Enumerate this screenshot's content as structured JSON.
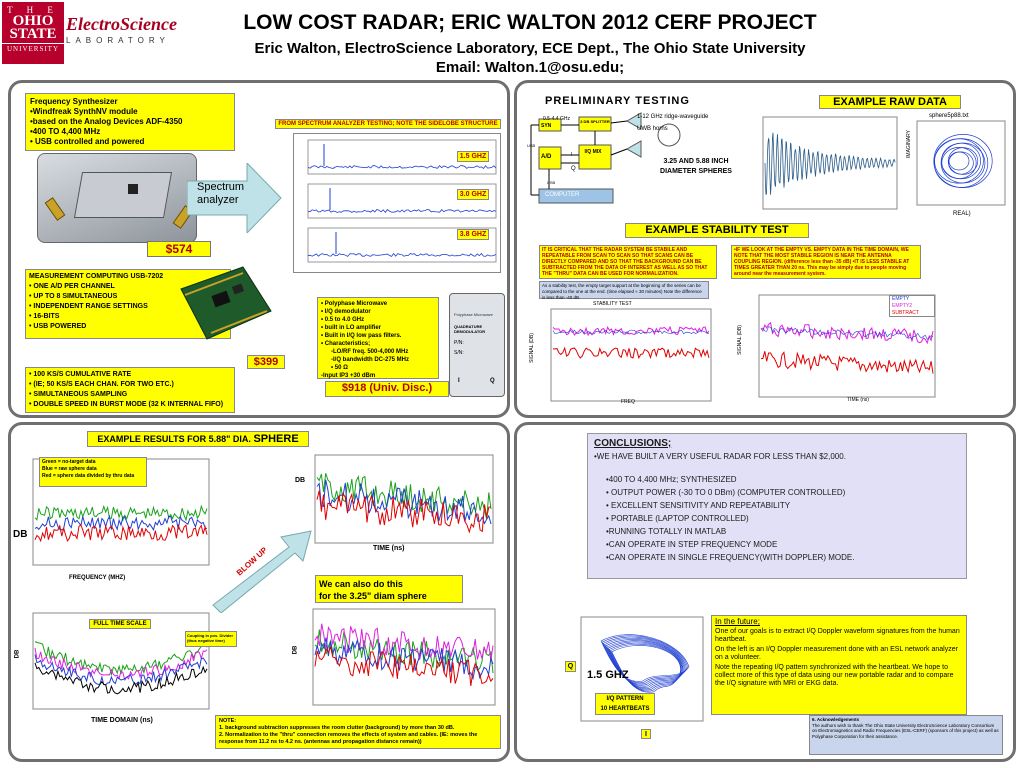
{
  "header": {
    "osu_logo": {
      "line1": "T H E",
      "line2": "OHIO",
      "line3": "STATE",
      "line4": "UNIVERSITY"
    },
    "es_logo": {
      "name": "ElectroScience",
      "lab": "LABORATORY"
    },
    "title": "LOW COST RADAR;   ERIC WALTON 2012 CERF PROJECT",
    "subtitle": "Eric Walton, ElectroScience Laboratory, ECE Dept., The Ohio State University",
    "email": "Email: Walton.1@osu.edu;"
  },
  "panel_tl": {
    "synth": {
      "title": "Frequency Synthesizer",
      "items": [
        "•Windfreak SynthNV module",
        "•based on the  Analog Devices ADF-4350",
        "•400 TO 4,400 MHz",
        "• USB controlled and powered"
      ]
    },
    "spectrum_label": "Spectrum analyzer",
    "price_synth": "$574",
    "sa_title": "FROM SPECTRUM ANALYZER TESTING;  NOTE THE SIDELOBE STRUCTURE",
    "ghz_labels": [
      "1.5 GHZ",
      "3.0 GHZ",
      "3.8 GHZ"
    ],
    "measurement": {
      "title": "MEASUREMENT COMPUTING USB-7202",
      "items": [
        "•  ONE A/D PER CHANNEL",
        "•  UP TO 8 SIMULTANEOUS",
        "•  INDEPENDENT RANGE SETTINGS",
        "•  16-BITS",
        "•  USB POWERED"
      ]
    },
    "price_daq": "$399",
    "rate": {
      "items": [
        "•  100 KS/S CUMULATIVE RATE",
        "•  (IE; 50 KS/S EACH CHAN. FOR TWO ETC.)",
        "•  SIMULTANEOUS SAMPLING",
        "•  DOUBLE SPEED IN BURST MODE (32 K INTERNAL FIFO)"
      ]
    },
    "polyphase": {
      "items": [
        "• Polyphase Microwave",
        "• I/Q demodulator",
        "• 0.5 to 4.0 GHz",
        "• built in LO amplifier",
        "• Built in  I/Q low pass filters.",
        "• Characteristics;",
        "-LO/RF freq.        500-4,000 MHz",
        "-I/Q bandwidth      DC-275 MHz",
        "• 50 Ω",
        "-Input IP3    +30 dBm"
      ]
    },
    "price_demod": "$918 (Univ. Disc.)",
    "demod": {
      "brand": "Polyphase Microwave",
      "name": "QUADRATURE DEMODULATOR",
      "pn": "P/N:",
      "sn": "S/N:",
      "i": "I",
      "q": "Q"
    }
  },
  "panel_tr": {
    "pre_title": "PRELIMINARY  TESTING",
    "block": {
      "freq1": "0.5-4.4 GHz",
      "freq2": "1-12 GHz ridge-waveguide",
      "freq3": "UWB horns",
      "syn": "SYN",
      "splitter": "3 DB SPLITTER",
      "ad": "A/D",
      "iq": "I/Q MIX",
      "usb1": "USB",
      "usb2": "USB",
      "i": "I",
      "q": "Q",
      "computer": "COMPUTER",
      "spheres": "3.25 AND 5.88 INCH DIAMETER SPHERES"
    },
    "raw_title": "EXAMPLE RAW DATA",
    "raw_plot_title": "sphere5p88.txt",
    "raw_ylabel": "IMAGINARY",
    "raw_xlabel": "REAL)",
    "stab_title": "EXAMPLE STABILITY TEST",
    "crit_left": "IT IS CRITICAL THAT THE RADAR SYSTEM BE STABILE AND REPEATABLE FROM SCAN TO SCAN SO THAT  SCANS CAN BE DIRECTLY COMPARED AND SO THAT THE BACKGROUND CAN BE SUBTRACTED FROM THE DATA OF INTEREST AS WELL AS SO THAT THE \"THRU\" DATA CAN BE USED FOR NORMALIZATION.",
    "crit_right": "•IF WE LOOK AT THE EMPTY VS. EMPTY DATA IN THE TIME DOMAIN, WE NOTE THAT THE MOST STABILE REGION IS NEAR THE ANTENNA COUPLING REGION. (difference less than -35 dB)  •IT IS LESS STABILE AT TIMES GREATER THAN 20 ns.  This may be simply due to people moving around near the measurement system.",
    "latest": "As a stability test, the empty target support at the beginning of the series can be compared to the one at the end. (time elapsed ≈ 30 minutes)  Note the difference is less than -40 dB.",
    "stab_left_title": "STABILITY TEST",
    "stab_left_ylabel": "SIGNAL (DB)",
    "stab_left_xlabel": "FREQ",
    "stab_right_ylabel": "SIGNAL (DB)",
    "stab_right_xlabel": "TIME (ns)",
    "legend": [
      "EMPTY",
      "EMPTY2",
      "SUBTRACT"
    ]
  },
  "panel_bl": {
    "ex_title_a": "EXAMPLE RESULTS FOR 5.88\" DIA. ",
    "ex_title_b": "SPHERE",
    "legend_lines": [
      "Green = no-target data",
      "Blue = raw sphere data",
      "Red = sphere data divided by thru data"
    ],
    "db": "DB",
    "freq_label": "FREQUENCY (MHZ)",
    "blow": "BLOW UP",
    "time_ns": "TIME (ns)",
    "db_small": "DB",
    "can_also": [
      "We can also do this",
      "for the 3.25\" diam sphere"
    ],
    "full_scale": "FULL TIME SCALE",
    "coupling": [
      "Coupling in pos. Divider",
      "(thus negative time)"
    ],
    "time_domain": "TIME DOMAIN  (ns)",
    "note_title": "NOTE:",
    "notes": [
      "1.  background subtraction suppresses the room clutter (background) by more than 30 dB.",
      "2.  Normalization to the \"thru\" connection removes the effects of system and cables. (IE:  moves the response from 11.2 ns to 4.2 ns.  (antennas and propagation distance remain))"
    ]
  },
  "panel_br": {
    "concl_head": "CONCLUSIONS;",
    "concl_items": [
      "•WE HAVE BUILT A VERY USEFUL RADAR FOR LESS THAN $2,000.",
      "",
      "  •400 TO 4,400 MHz; SYNTHESIZED",
      "  • OUTPUT POWER (-30 TO 0 DBm)  (COMPUTER CONTROLLED)",
      "  • EXCELLENT SENSITIVITY AND REPEATABILITY",
      "  • PORTABLE (LAPTOP CONTROLLED)",
      "  •RUNNING TOTALLY IN MATLAB",
      "  •CAN OPERATE IN STEP FREQUENCY MODE",
      "  •CAN OPERATE IN SINGLE FREQUENCY(WITH DOPPLER) MODE."
    ],
    "future_head": "In the future;",
    "future_items": [
      "One of our goals is to extract I/Q Doppler waveform signatures from the human heartbeat.",
      "On the left is an I/Q Doppler measurement done with an ESL network analyzer on a volunteer.",
      "Note the repeating I/Q pattern synchronized with the heartbeat.  We hope to collect more of this type of data using our new portable radar and to compare the I/Q signature with MRI or EKG data."
    ],
    "ghz": "1.5 GHZ",
    "iq_pattern": [
      "I/Q PATTERN",
      "10 HEARTBEATS"
    ],
    "q": "Q",
    "i": "I",
    "ack_title": "6. Acknowledgements",
    "ack": "The authors wish to thank The Ohio State University ElectroScience Laboratory Consortium on Electromagnetics and Radio Frequencies (ESL-CERF) (sponsors of this project) as well as Polyphase Corporation for their assistance."
  },
  "colors": {
    "yellow": "#ffff00",
    "red_text": "#b40000",
    "panel_border": "#6f6f6f",
    "osu_red": "#b8002c",
    "concl_bg": "#e1e0f6",
    "ack_bg": "#c9d5ec",
    "arrow": "#bfe1e8"
  }
}
